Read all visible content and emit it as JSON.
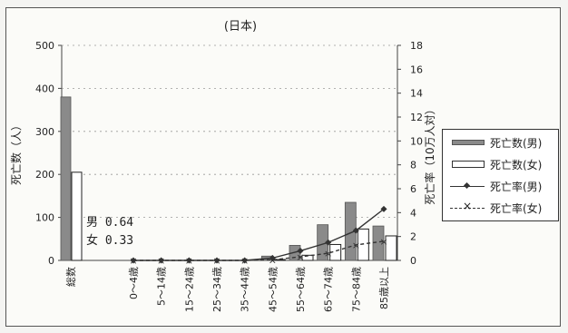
{
  "chart_data": {
    "type": "bar",
    "title": "(日本)",
    "ylabel": "死亡数（人）",
    "y2label": "死亡率（10万人対）",
    "ylim": [
      0,
      500
    ],
    "yticks": [
      0,
      100,
      200,
      300,
      400,
      500
    ],
    "y2lim": [
      0,
      18
    ],
    "y2ticks": [
      0,
      2,
      4,
      6,
      8,
      10,
      12,
      14,
      16,
      18
    ],
    "categories": [
      "総数",
      "0～4歳",
      "5～14歳",
      "15～24歳",
      "25～34歳",
      "35～44歳",
      "45～54歳",
      "55～64歳",
      "65～74歳",
      "75～84歳",
      "85歳以上"
    ],
    "series": [
      {
        "name": "死亡数(男)",
        "kind": "bar",
        "axis": "left",
        "color": "#8a8a8a",
        "values": [
          380,
          0,
          0,
          0,
          0,
          0,
          10,
          35,
          83,
          135,
          80
        ]
      },
      {
        "name": "死亡数(女)",
        "kind": "bar",
        "axis": "left",
        "color": "#ffffff",
        "values": [
          205,
          0,
          0,
          0,
          0,
          0,
          2,
          12,
          37,
          73,
          57
        ]
      },
      {
        "name": "死亡率(男)",
        "kind": "line",
        "axis": "right",
        "color": "#333333",
        "values": [
          null,
          0,
          0,
          0,
          0,
          0,
          0.2,
          0.8,
          1.5,
          2.5,
          4.3
        ]
      },
      {
        "name": "死亡率(女)",
        "kind": "line",
        "axis": "right",
        "color": "#333333",
        "dashed": true,
        "values": [
          null,
          0,
          0,
          0,
          0,
          0,
          0.05,
          0.3,
          0.6,
          1.3,
          1.6
        ]
      }
    ],
    "annotation": {
      "male": "男 0.64",
      "female": "女 0.33"
    },
    "legend_position": "right"
  }
}
